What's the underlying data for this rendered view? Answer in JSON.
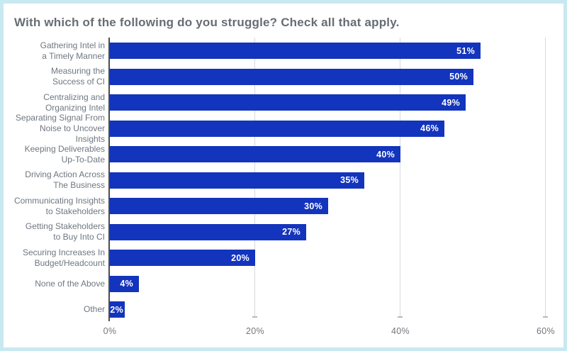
{
  "page": {
    "background_color": "#ffffff",
    "border_color": "#c8e9f1"
  },
  "chart_data": {
    "type": "bar",
    "orientation": "horizontal",
    "title": "With which of the following do you struggle? Check all that apply.",
    "categories": [
      "Gathering Intel in a Timely Manner",
      "Measuring the Success of CI",
      "Centralizing and Organizing Intel",
      "Separating Signal From Noise to Uncover Insights",
      "Keeping Deliverables Up-To-Date",
      "Driving Action Across The Business",
      "Communicating Insights to Stakeholders",
      "Getting Stakeholders to Buy Into CI",
      "Securing Increases In Budget/Headcount",
      "None of the Above",
      "Other"
    ],
    "label_lines": [
      "Gathering Intel in\na Timely Manner",
      "Measuring the\nSuccess of CI",
      "Centralizing and\nOrganizing Intel",
      "Separating Signal From\nNoise to Uncover Insights",
      "Keeping Deliverables\nUp-To-Date",
      "Driving Action Across\nThe Business",
      "Communicating Insights\nto Stakeholders",
      "Getting Stakeholders\nto Buy Into CI",
      "Securing Increases In\nBudget/Headcount",
      "None of the Above",
      "Other"
    ],
    "values": [
      51,
      50,
      49,
      46,
      40,
      35,
      30,
      27,
      20,
      4,
      2
    ],
    "value_labels": [
      "51%",
      "50%",
      "49%",
      "46%",
      "40%",
      "35%",
      "30%",
      "27%",
      "20%",
      "4%",
      "2%"
    ],
    "xlabel": "",
    "ylabel": "",
    "xlim": [
      0,
      60
    ],
    "x_tick_values": [
      0,
      20,
      40,
      60
    ],
    "x_tick_labels": [
      "0%",
      "20%",
      "40%",
      "60%"
    ],
    "grid": true,
    "legend": false,
    "colors": {
      "bar": "#1334bc",
      "value_label": "#ffffff",
      "gridline": "#d7d9db",
      "grid_cap": "#b6babf",
      "axis_line": "#4a4d51",
      "category_label": "#6f7780",
      "tick_label": "#72777d",
      "title": "#676d74"
    }
  }
}
